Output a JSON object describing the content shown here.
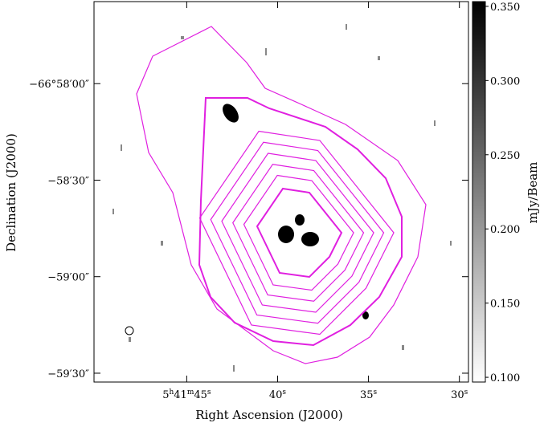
{
  "chart_data": {
    "type": "contour",
    "xlabel": "Right Ascension (J2000)",
    "ylabel": "Declination (J2000)",
    "colorbar_label": "mJy/Beam",
    "xlim": [
      50.1,
      29.5
    ],
    "xticks": [
      {
        "value": 45,
        "label": "5h41m45s"
      },
      {
        "value": 40,
        "label": "40s"
      },
      {
        "value": 35,
        "label": "35s"
      },
      {
        "value": 30,
        "label": "30s"
      }
    ],
    "ylim": [
      -66.959583,
      -66.992431
    ],
    "yticks": [
      {
        "value": -66.966667,
        "label": "−66°58′00″"
      },
      {
        "value": -66.975,
        "label": "−58′30″"
      },
      {
        "value": -66.983333,
        "label": "−59′00″"
      },
      {
        "value": -66.991667,
        "label": "−59′30″"
      }
    ],
    "clim": [
      0.0968,
      0.3532
    ],
    "cticks": [
      {
        "value": 0.1,
        "label": "0.100"
      },
      {
        "value": 0.15,
        "label": "0.150"
      },
      {
        "value": 0.2,
        "label": "0.200"
      },
      {
        "value": 0.25,
        "label": "0.250"
      },
      {
        "value": 0.3,
        "label": "0.300"
      },
      {
        "value": 0.35,
        "label": "0.350"
      }
    ],
    "contour_color": "#e020e0"
  }
}
